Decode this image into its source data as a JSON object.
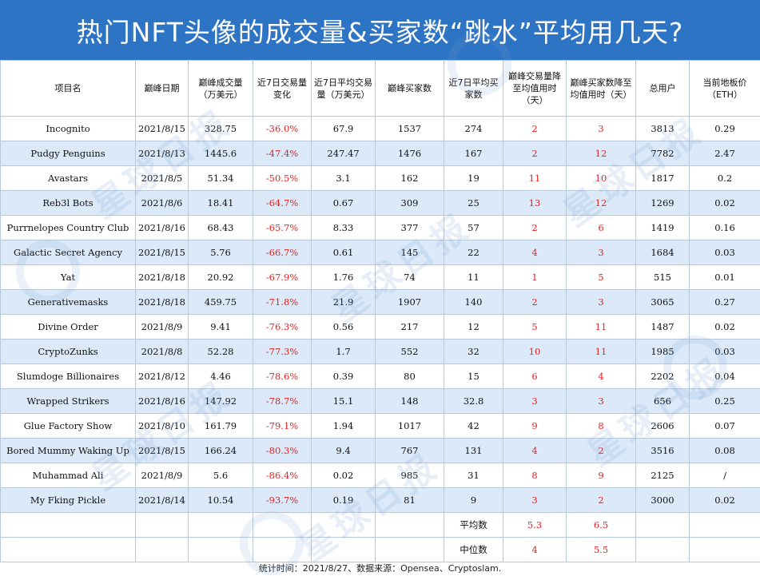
{
  "title": "热门NFT头像的成交量&买家数“跳水”平均用几天?",
  "headers": {
    "name": "项目名",
    "peak_date": "巅峰日期",
    "peak_volume": "巅峰成交量（万美元）",
    "vol_change": "近7日交易量变化",
    "avg7_volume": "近7日平均交易量（万美元）",
    "peak_buyers": "巅峰买家数",
    "avg7_buyers": "近7日平均买家数",
    "vol_days": "巅峰交易量降至均值用时（天）",
    "buyer_days": "巅峰买家数降至均值用时（天）",
    "total_users": "总用户",
    "floor": "当前地板价（ETH）"
  },
  "rows": [
    {
      "name": "Incognito",
      "date": "2021/8/15",
      "peak": "328.75",
      "change": "-36.0%",
      "avg7": "67.9",
      "pbuyers": "1537",
      "avgbuyers": "274",
      "vdays": "2",
      "bdays": "3",
      "users": "3813",
      "floor": "0.29"
    },
    {
      "name": "Pudgy Penguins",
      "date": "2021/8/13",
      "peak": "1445.6",
      "change": "-47.4%",
      "avg7": "247.47",
      "pbuyers": "1476",
      "avgbuyers": "167",
      "vdays": "2",
      "bdays": "12",
      "users": "7782",
      "floor": "2.47"
    },
    {
      "name": "Avastars",
      "date": "2021/8/5",
      "peak": "51.34",
      "change": "-50.5%",
      "avg7": "3.1",
      "pbuyers": "162",
      "avgbuyers": "19",
      "vdays": "11",
      "bdays": "10",
      "users": "1817",
      "floor": "0.2"
    },
    {
      "name": "Reb3l Bots",
      "date": "2021/8/6",
      "peak": "18.41",
      "change": "-64.7%",
      "avg7": "0.67",
      "pbuyers": "309",
      "avgbuyers": "25",
      "vdays": "13",
      "bdays": "12",
      "users": "1269",
      "floor": "0.02"
    },
    {
      "name": "Purrnelopes Country Club",
      "date": "2021/8/16",
      "peak": "68.43",
      "change": "-65.7%",
      "avg7": "8.33",
      "pbuyers": "377",
      "avgbuyers": "57",
      "vdays": "2",
      "bdays": "6",
      "users": "1419",
      "floor": "0.16"
    },
    {
      "name": "Galactic Secret Agency",
      "date": "2021/8/15",
      "peak": "5.76",
      "change": "-66.7%",
      "avg7": "0.61",
      "pbuyers": "145",
      "avgbuyers": "22",
      "vdays": "4",
      "bdays": "3",
      "users": "1684",
      "floor": "0.03"
    },
    {
      "name": "Yat",
      "date": "2021/8/18",
      "peak": "20.92",
      "change": "-67.9%",
      "avg7": "1.76",
      "pbuyers": "74",
      "avgbuyers": "11",
      "vdays": "1",
      "bdays": "5",
      "users": "515",
      "floor": "0.01"
    },
    {
      "name": "Generativemasks",
      "date": "2021/8/18",
      "peak": "459.75",
      "change": "-71.8%",
      "avg7": "21.9",
      "pbuyers": "1907",
      "avgbuyers": "140",
      "vdays": "2",
      "bdays": "3",
      "users": "3065",
      "floor": "0.27"
    },
    {
      "name": "Divine Order",
      "date": "2021/8/9",
      "peak": "9.41",
      "change": "-76.3%",
      "avg7": "0.56",
      "pbuyers": "217",
      "avgbuyers": "12",
      "vdays": "5",
      "bdays": "11",
      "users": "1487",
      "floor": "0.02"
    },
    {
      "name": "CryptoZunks",
      "date": "2021/8/8",
      "peak": "52.28",
      "change": "-77.3%",
      "avg7": "1.7",
      "pbuyers": "552",
      "avgbuyers": "32",
      "vdays": "10",
      "bdays": "11",
      "users": "1985",
      "floor": "0.03"
    },
    {
      "name": "Slumdoge Billionaires",
      "date": "2021/8/12",
      "peak": "4.46",
      "change": "-78.6%",
      "avg7": "0.39",
      "pbuyers": "80",
      "avgbuyers": "15",
      "vdays": "6",
      "bdays": "4",
      "users": "2202",
      "floor": "0.04"
    },
    {
      "name": "Wrapped Strikers",
      "date": "2021/8/16",
      "peak": "147.92",
      "change": "-78.7%",
      "avg7": "15.1",
      "pbuyers": "148",
      "avgbuyers": "32.8",
      "vdays": "3",
      "bdays": "3",
      "users": "656",
      "floor": "0.25"
    },
    {
      "name": "Glue Factory Show",
      "date": "2021/8/10",
      "peak": "161.79",
      "change": "-79.1%",
      "avg7": "1.94",
      "pbuyers": "1017",
      "avgbuyers": "42",
      "vdays": "9",
      "bdays": "8",
      "users": "2606",
      "floor": "0.07"
    },
    {
      "name": "Bored Mummy Waking Up",
      "date": "2021/8/15",
      "peak": "166.24",
      "change": "-80.3%",
      "avg7": "9.4",
      "pbuyers": "767",
      "avgbuyers": "131",
      "vdays": "4",
      "bdays": "2",
      "users": "3516",
      "floor": "0.08"
    },
    {
      "name": "Muhammad Ali",
      "date": "2021/8/9",
      "peak": "5.6",
      "change": "-86.4%",
      "avg7": "0.02",
      "pbuyers": "985",
      "avgbuyers": "31",
      "vdays": "8",
      "bdays": "9",
      "users": "2125",
      "floor": "/"
    },
    {
      "name": "My Fking Pickle",
      "date": "2021/8/14",
      "peak": "10.54",
      "change": "-93.7%",
      "avg7": "0.19",
      "pbuyers": "81",
      "avgbuyers": "9",
      "vdays": "3",
      "bdays": "2",
      "users": "3000",
      "floor": "0.02"
    }
  ],
  "summary": {
    "avg_label": "平均数",
    "avg_vol_days": "5.3",
    "avg_buyer_days": "6.5",
    "median_label": "中位数",
    "median_vol_days": "4",
    "median_buyer_days": "5.5"
  },
  "footer": "统计时间：2021/8/27、数据来源：Opensea、Cryptoslam.",
  "watermark": "星球日报",
  "colors": {
    "header_bg": "#2e74c4",
    "row_stripe": "#dbe9f8",
    "accent_red": "#e52222"
  }
}
